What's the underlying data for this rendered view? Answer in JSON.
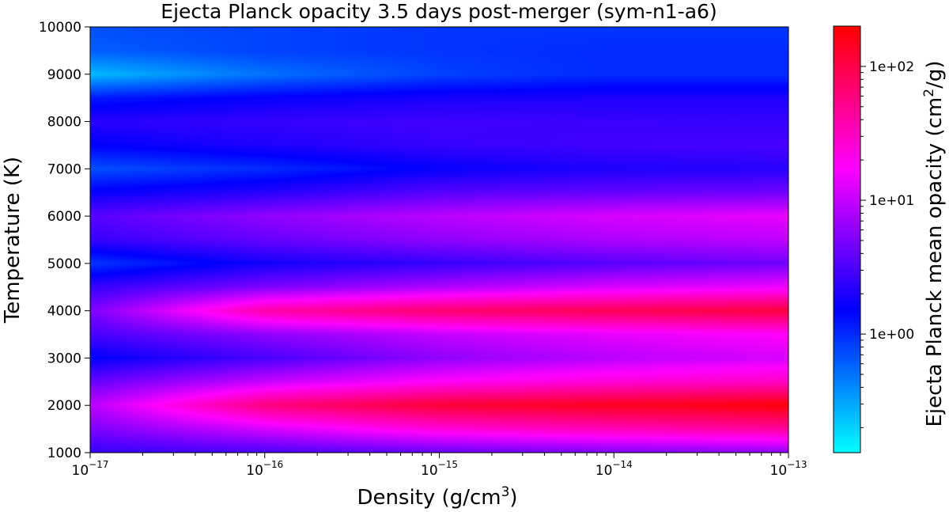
{
  "chart_data": {
    "type": "heatmap",
    "title": "Ejecta Planck opacity 3.5 days post-merger (sym-n1-a6)",
    "xlabel_text": "Density (g/cm",
    "xlabel_sup": "3",
    "xlabel_end": ")",
    "ylabel": "Temperature (K)",
    "colorbar_label_text": "Ejecta Planck mean opacity (cm",
    "colorbar_label_sup": "2",
    "colorbar_label_end": "/g)",
    "x_scale": "log",
    "xlim": [
      1e-17,
      1e-13
    ],
    "x_ticks": [
      {
        "value": 1e-17,
        "base": "10",
        "exp": "−17"
      },
      {
        "value": 1e-16,
        "base": "10",
        "exp": "−16"
      },
      {
        "value": 1e-15,
        "base": "10",
        "exp": "−15"
      },
      {
        "value": 1e-14,
        "base": "10",
        "exp": "−14"
      },
      {
        "value": 1e-13,
        "base": "10",
        "exp": "−13"
      }
    ],
    "ylim": [
      1000,
      10000
    ],
    "y_ticks": [
      {
        "value": 1000,
        "label": "1000"
      },
      {
        "value": 2000,
        "label": "2000"
      },
      {
        "value": 3000,
        "label": "3000"
      },
      {
        "value": 4000,
        "label": "4000"
      },
      {
        "value": 5000,
        "label": "5000"
      },
      {
        "value": 6000,
        "label": "6000"
      },
      {
        "value": 7000,
        "label": "7000"
      },
      {
        "value": 8000,
        "label": "8000"
      },
      {
        "value": 9000,
        "label": "9000"
      },
      {
        "value": 10000,
        "label": "10000"
      }
    ],
    "colorbar_scale": "log",
    "colorbar_range": [
      0.13,
      200
    ],
    "colorbar_ticks": [
      {
        "value": 1,
        "label": "1e+00"
      },
      {
        "value": 10,
        "label": "1e+01"
      },
      {
        "value": 100,
        "label": "1e+02"
      }
    ],
    "colormap": [
      "#00ffff",
      "#0000ff",
      "#ff00ff",
      "#ff0000"
    ],
    "grid_x_density": [
      1e-17,
      1e-16,
      1e-15,
      1e-14,
      1e-13
    ],
    "grid_y_temperature": [
      1000,
      1500,
      2000,
      2500,
      3000,
      3500,
      4000,
      4500,
      5000,
      5500,
      6000,
      6500,
      7000,
      7500,
      8000,
      8500,
      9000,
      9500,
      10000
    ],
    "opacity_values": [
      [
        2.5,
        3.0,
        4.0,
        5.0,
        6.0
      ],
      [
        5.0,
        12.0,
        25.0,
        35.0,
        45.0
      ],
      [
        9.0,
        60.0,
        120.0,
        150.0,
        180.0
      ],
      [
        4.0,
        10.0,
        18.0,
        25.0,
        30.0
      ],
      [
        1.5,
        3.0,
        6.0,
        9.0,
        12.0
      ],
      [
        3.0,
        6.0,
        10.0,
        14.0,
        18.0
      ],
      [
        5.0,
        40.0,
        70.0,
        90.0,
        110.0
      ],
      [
        2.5,
        5.0,
        8.0,
        12.0,
        15.0
      ],
      [
        0.9,
        1.8,
        2.5,
        3.5,
        4.5
      ],
      [
        2.5,
        4.0,
        6.0,
        8.0,
        9.5
      ],
      [
        3.5,
        6.0,
        9.0,
        12.0,
        14.0
      ],
      [
        1.6,
        2.2,
        3.5,
        4.0,
        4.5
      ],
      [
        0.7,
        1.0,
        1.6,
        2.0,
        2.2
      ],
      [
        1.5,
        2.0,
        2.5,
        2.8,
        3.0
      ],
      [
        2.2,
        2.5,
        2.8,
        2.6,
        2.5
      ],
      [
        1.2,
        1.6,
        1.9,
        2.0,
        2.0
      ],
      [
        0.25,
        0.5,
        0.8,
        1.0,
        1.0
      ],
      [
        0.6,
        0.8,
        0.9,
        1.0,
        1.0
      ],
      [
        0.7,
        0.8,
        0.9,
        0.9,
        0.9
      ]
    ]
  }
}
